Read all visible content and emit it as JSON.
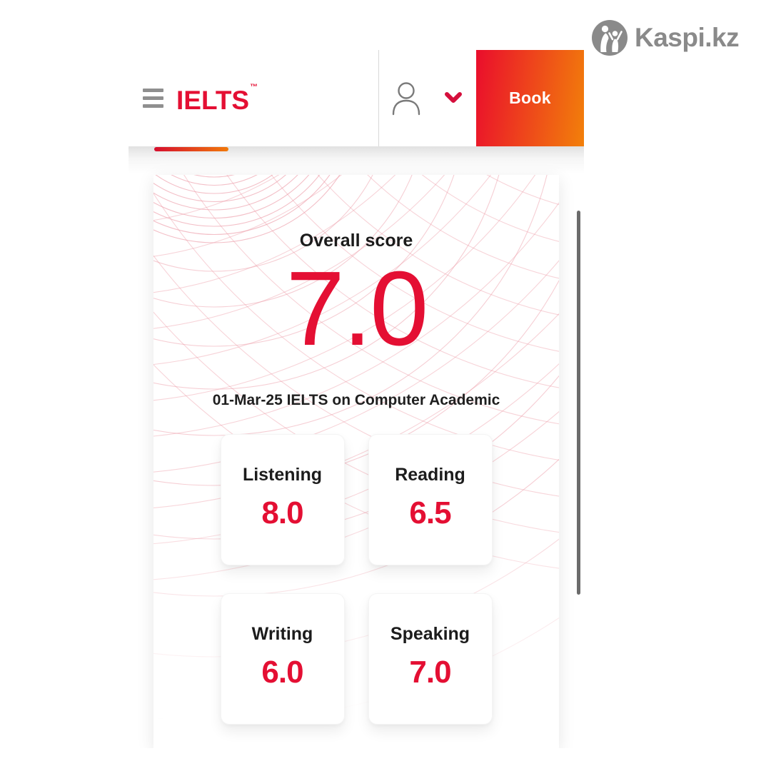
{
  "watermark": {
    "text": "Kaspi.kz"
  },
  "header": {
    "brand": "IELTS",
    "brand_tm": "™",
    "book_label": "Book"
  },
  "overall": {
    "label": "Overall score",
    "score": "7.0",
    "exam": "01-Mar-25 IELTS on Computer Academic"
  },
  "skills": [
    {
      "label": "Listening",
      "score": "8.0"
    },
    {
      "label": "Reading",
      "score": "6.5"
    },
    {
      "label": "Writing",
      "score": "6.0"
    },
    {
      "label": "Speaking",
      "score": "7.0"
    }
  ],
  "icons": {
    "menu": "hamburger-icon",
    "account": "person-outline-icon",
    "chevron": "chevron-down-icon",
    "kaspi": "kaspi-people-icon"
  },
  "colors": {
    "accent_red": "#e40f33",
    "gradient_from": "#ea0d2c",
    "gradient_to": "#f2800a",
    "pattern_pink": "#ed9da9",
    "logo_gray": "#8a8a8a",
    "scrollbar_gray": "#6b6b6b"
  }
}
